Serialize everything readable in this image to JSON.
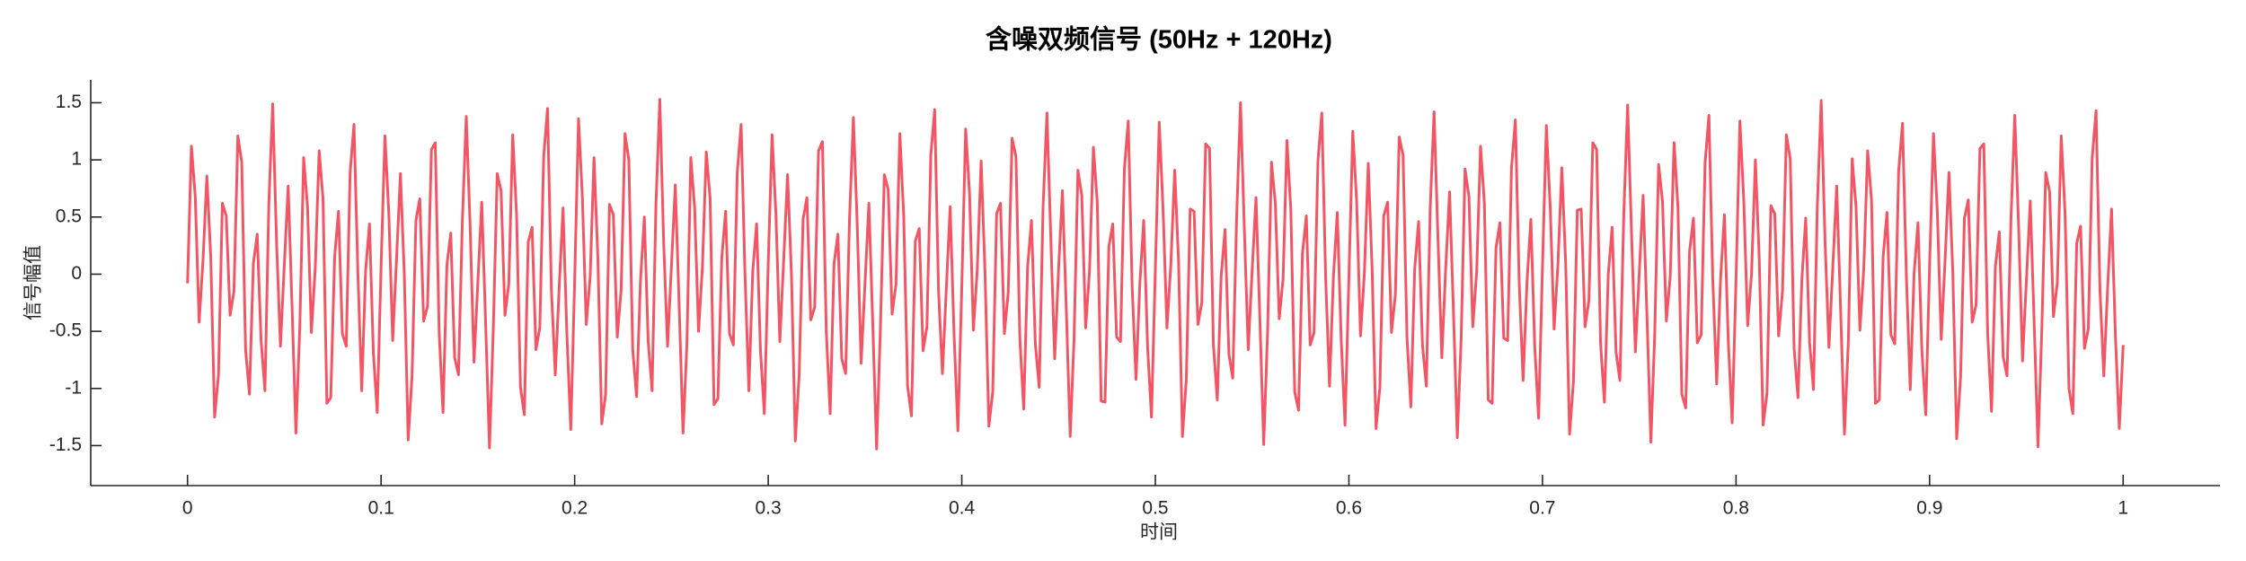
{
  "chart_data": {
    "type": "line",
    "title": "含噪双频信号 (50Hz + 120Hz)",
    "xlabel": "时间",
    "ylabel": "信号幅值",
    "xlim": [
      -0.05,
      1.05
    ],
    "ylim": [
      -1.85,
      1.7
    ],
    "xticks": [
      0,
      0.1,
      0.2,
      0.3,
      0.4,
      0.5,
      0.6,
      0.7,
      0.8,
      0.9,
      1
    ],
    "yticks": [
      -1.5,
      -1,
      -0.5,
      0,
      0.5,
      1,
      1.5
    ],
    "grid": false,
    "x": [
      0,
      0.002,
      0.004,
      0.006,
      0.008,
      0.01,
      0.012,
      0.014,
      0.016,
      0.018,
      0.02,
      0.022,
      0.024,
      0.026,
      0.028,
      0.03,
      0.032,
      0.034,
      0.036,
      0.038,
      0.04,
      0.042,
      0.044,
      0.046,
      0.048,
      0.05,
      0.052,
      0.054,
      0.056,
      0.058,
      0.06,
      0.062,
      0.064,
      0.066,
      0.068,
      0.07,
      0.072,
      0.074,
      0.076,
      0.078,
      0.08,
      0.082,
      0.084,
      0.086,
      0.088,
      0.09,
      0.092,
      0.094,
      0.096,
      0.098,
      0.1,
      0.102,
      0.104,
      0.106,
      0.108,
      0.11,
      0.112,
      0.114,
      0.116,
      0.118,
      0.12,
      0.122,
      0.124,
      0.126,
      0.128,
      0.13,
      0.132,
      0.134,
      0.136,
      0.138,
      0.14,
      0.142,
      0.144,
      0.146,
      0.148,
      0.15,
      0.152,
      0.154,
      0.156,
      0.158,
      0.16,
      0.162,
      0.164,
      0.166,
      0.168,
      0.17,
      0.172,
      0.174,
      0.176,
      0.178,
      0.18,
      0.182,
      0.184,
      0.186,
      0.188,
      0.19,
      0.192,
      0.194,
      0.196,
      0.198,
      0.2,
      0.202,
      0.204,
      0.206,
      0.208,
      0.21,
      0.212,
      0.214,
      0.216,
      0.218,
      0.22,
      0.222,
      0.224,
      0.226,
      0.228,
      0.23,
      0.232,
      0.234,
      0.236,
      0.238,
      0.24,
      0.242,
      0.244,
      0.246,
      0.248,
      0.25,
      0.252,
      0.254,
      0.256,
      0.258,
      0.26,
      0.262,
      0.264,
      0.266,
      0.268,
      0.27,
      0.272,
      0.274,
      0.276,
      0.278,
      0.28,
      0.282,
      0.284,
      0.286,
      0.288,
      0.29,
      0.292,
      0.294,
      0.296,
      0.298,
      0.3,
      0.302,
      0.304,
      0.306,
      0.308,
      0.31,
      0.312,
      0.314,
      0.316,
      0.318,
      0.32,
      0.322,
      0.324,
      0.326,
      0.328,
      0.33,
      0.332,
      0.334,
      0.336,
      0.338,
      0.34,
      0.342,
      0.344,
      0.346,
      0.348,
      0.35,
      0.352,
      0.354,
      0.356,
      0.358,
      0.36,
      0.362,
      0.364,
      0.366,
      0.368,
      0.37,
      0.372,
      0.374,
      0.376,
      0.378,
      0.38,
      0.382,
      0.384,
      0.386,
      0.388,
      0.39,
      0.392,
      0.394,
      0.396,
      0.398,
      0.4,
      0.402,
      0.404,
      0.406,
      0.408,
      0.41,
      0.412,
      0.414,
      0.416,
      0.418,
      0.42,
      0.422,
      0.424,
      0.426,
      0.428,
      0.43,
      0.432,
      0.434,
      0.436,
      0.438,
      0.44,
      0.442,
      0.444,
      0.446,
      0.448,
      0.45,
      0.452,
      0.454,
      0.456,
      0.458,
      0.46,
      0.462,
      0.464,
      0.466,
      0.468,
      0.47,
      0.472,
      0.474,
      0.476,
      0.478,
      0.48,
      0.482,
      0.484,
      0.486,
      0.488,
      0.49,
      0.492,
      0.494,
      0.496,
      0.498,
      0.5,
      0.502,
      0.504,
      0.506,
      0.508,
      0.51,
      0.512,
      0.514,
      0.516,
      0.518,
      0.52,
      0.522,
      0.524,
      0.526,
      0.528,
      0.53,
      0.532,
      0.534,
      0.536,
      0.538,
      0.54,
      0.542,
      0.544,
      0.546,
      0.548,
      0.55,
      0.552,
      0.554,
      0.556,
      0.558,
      0.56,
      0.562,
      0.564,
      0.566,
      0.568,
      0.57,
      0.572,
      0.574,
      0.576,
      0.578,
      0.58,
      0.582,
      0.584,
      0.586,
      0.588,
      0.59,
      0.592,
      0.594,
      0.596,
      0.598,
      0.6,
      0.602,
      0.604,
      0.606,
      0.608,
      0.61,
      0.612,
      0.614,
      0.616,
      0.618,
      0.62,
      0.622,
      0.624,
      0.626,
      0.628,
      0.63,
      0.632,
      0.634,
      0.636,
      0.638,
      0.64,
      0.642,
      0.644,
      0.646,
      0.648,
      0.65,
      0.652,
      0.654,
      0.656,
      0.658,
      0.66,
      0.662,
      0.664,
      0.666,
      0.668,
      0.67,
      0.672,
      0.674,
      0.676,
      0.678,
      0.68,
      0.682,
      0.684,
      0.686,
      0.688,
      0.69,
      0.692,
      0.694,
      0.696,
      0.698,
      0.7,
      0.702,
      0.704,
      0.706,
      0.708,
      0.71,
      0.712,
      0.714,
      0.716,
      0.718,
      0.72,
      0.722,
      0.724,
      0.726,
      0.728,
      0.73,
      0.732,
      0.734,
      0.736,
      0.738,
      0.74,
      0.742,
      0.744,
      0.746,
      0.748,
      0.75,
      0.752,
      0.754,
      0.756,
      0.758,
      0.76,
      0.762,
      0.764,
      0.766,
      0.768,
      0.77,
      0.772,
      0.774,
      0.776,
      0.778,
      0.78,
      0.782,
      0.784,
      0.786,
      0.788,
      0.79,
      0.792,
      0.794,
      0.796,
      0.798,
      0.8,
      0.802,
      0.804,
      0.806,
      0.808,
      0.81,
      0.812,
      0.814,
      0.816,
      0.818,
      0.82,
      0.822,
      0.824,
      0.826,
      0.828,
      0.83,
      0.832,
      0.834,
      0.836,
      0.838,
      0.84,
      0.842,
      0.844,
      0.846,
      0.848,
      0.85,
      0.852,
      0.854,
      0.856,
      0.858,
      0.86,
      0.862,
      0.864,
      0.866,
      0.868,
      0.87,
      0.872,
      0.874,
      0.876,
      0.878,
      0.88,
      0.882,
      0.884,
      0.886,
      0.888,
      0.89,
      0.892,
      0.894,
      0.896,
      0.898,
      0.9,
      0.902,
      0.904,
      0.906,
      0.908,
      0.91,
      0.912,
      0.914,
      0.916,
      0.918,
      0.92,
      0.922,
      0.924,
      0.926,
      0.928,
      0.93,
      0.932,
      0.934,
      0.936,
      0.938,
      0.94,
      0.942,
      0.944,
      0.946,
      0.948,
      0.95,
      0.952,
      0.954,
      0.956,
      0.958,
      0.96,
      0.962,
      0.964,
      0.966,
      0.968,
      0.97,
      0.972,
      0.974,
      0.976,
      0.978,
      0.98,
      0.982,
      0.984,
      0.986,
      0.988,
      0.99,
      0.992,
      0.994,
      0.996,
      0.998,
      1
    ],
    "series": [
      {
        "color": "#f25563",
        "values": [
          -0.08,
          1.12,
          0.68,
          -0.42,
          0.12,
          0.86,
          0.15,
          -1.25,
          -0.88,
          0.62,
          0.51,
          -0.36,
          -0.15,
          1.21,
          0.98,
          -0.66,
          -1.05,
          0.09,
          0.35,
          -0.58,
          -1.02,
          0.61,
          1.49,
          0.28,
          -0.63,
          0.08,
          0.77,
          -0.28,
          -1.39,
          -0.47,
          1.02,
          0.59,
          -0.51,
          0.06,
          1.08,
          0.66,
          -1.13,
          -1.08,
          0.15,
          0.55,
          -0.52,
          -0.63,
          0.89,
          1.31,
          0.02,
          -1.02,
          0.03,
          0.44,
          -0.68,
          -1.21,
          0.07,
          1.21,
          0.53,
          -0.58,
          0.14,
          0.88,
          -0.01,
          -1.45,
          -0.89,
          0.47,
          0.66,
          -0.41,
          -0.28,
          1.09,
          1.15,
          -0.51,
          -1.21,
          0.08,
          0.36,
          -0.73,
          -0.88,
          0.47,
          1.38,
          0.42,
          -0.77,
          -0.07,
          0.63,
          -0.42,
          -1.52,
          -0.46,
          0.88,
          0.73,
          -0.36,
          -0.08,
          1.22,
          0.52,
          -0.99,
          -1.23,
          0.28,
          0.41,
          -0.66,
          -0.47,
          1.03,
          1.45,
          -0.14,
          -0.88,
          -0.12,
          0.58,
          -0.53,
          -1.36,
          -0.06,
          1.36,
          0.67,
          -0.44,
          -0.03,
          1.02,
          0.14,
          -1.31,
          -1.05,
          0.61,
          0.52,
          -0.55,
          -0.14,
          1.23,
          1.0,
          -0.66,
          -1.07,
          -0.06,
          0.5,
          -0.59,
          -1.02,
          0.61,
          1.53,
          0.27,
          -0.63,
          0.07,
          0.78,
          -0.28,
          -1.39,
          -0.61,
          1.02,
          0.58,
          -0.5,
          0.06,
          1.07,
          0.66,
          -1.14,
          -1.09,
          0.14,
          0.55,
          -0.52,
          -0.62,
          0.89,
          1.31,
          0,
          -1.02,
          0.02,
          0.44,
          -0.67,
          -1.22,
          0.09,
          1.22,
          0.52,
          -0.59,
          0.13,
          0.87,
          0,
          -1.46,
          -0.88,
          0.48,
          0.67,
          -0.4,
          -0.29,
          1.08,
          1.16,
          -0.5,
          -1.22,
          0.09,
          0.35,
          -0.74,
          -0.87,
          0.48,
          1.37,
          0.43,
          -0.78,
          -0.08,
          0.62,
          -0.43,
          -1.53,
          -0.45,
          0.87,
          0.74,
          -0.35,
          -0.09,
          1.23,
          0.51,
          -0.98,
          -1.24,
          0.29,
          0.4,
          -0.67,
          -0.46,
          1.04,
          1.44,
          -0.15,
          -0.87,
          -0.13,
          0.59,
          -0.52,
          -1.37,
          -0.11,
          1.27,
          0.71,
          -0.49,
          0.04,
          0.99,
          0.02,
          -1.33,
          -1.03,
          0.53,
          0.62,
          -0.52,
          -0.16,
          1.19,
          1.03,
          -0.56,
          -1.18,
          0.06,
          0.47,
          -0.61,
          -0.99,
          0.59,
          1.41,
          0.31,
          -0.74,
          0.04,
          0.73,
          -0.31,
          -1.42,
          -0.57,
          0.91,
          0.69,
          -0.47,
          0.03,
          1.11,
          0.63,
          -1.11,
          -1.12,
          0.24,
          0.44,
          -0.55,
          -0.59,
          0.92,
          1.34,
          -0.1,
          -0.92,
          -0.08,
          0.47,
          -0.64,
          -1.25,
          0.04,
          1.33,
          0.56,
          -0.47,
          0.08,
          0.91,
          0.11,
          -1.42,
          -0.92,
          0.57,
          0.55,
          -0.44,
          -0.25,
          1.14,
          1.1,
          -0.62,
          -1.1,
          -0.02,
          0.39,
          -0.7,
          -0.91,
          0.5,
          1.5,
          0.38,
          -0.66,
          0.03,
          0.67,
          -0.39,
          -1.49,
          -0.5,
          0.98,
          0.62,
          -0.39,
          -0.04,
          1.17,
          0.56,
          -1.03,
          -1.19,
          0.18,
          0.51,
          -0.62,
          -0.51,
          0.99,
          1.41,
          -0.04,
          -0.98,
          -0.02,
          0.54,
          -0.57,
          -1.32,
          -0.03,
          1.25,
          0.64,
          -0.54,
          0.01,
          0.97,
          0.04,
          -1.35,
          -0.99,
          0.51,
          0.63,
          -0.51,
          -0.18,
          1.2,
          1.04,
          -0.55,
          -1.16,
          0.05,
          0.46,
          -0.62,
          -0.98,
          0.58,
          1.42,
          0.32,
          -0.73,
          0.05,
          0.72,
          -0.32,
          -1.43,
          -0.56,
          0.92,
          0.68,
          -0.46,
          0.02,
          1.12,
          0.62,
          -1.1,
          -1.13,
          0.23,
          0.45,
          -0.56,
          -0.58,
          0.93,
          1.35,
          -0.09,
          -0.93,
          -0.07,
          0.48,
          -0.63,
          -1.26,
          0.06,
          1.3,
          0.59,
          -0.48,
          0.09,
          0.93,
          0.09,
          -1.4,
          -0.94,
          0.56,
          0.57,
          -0.46,
          -0.23,
          1.15,
          1.09,
          -0.6,
          -1.12,
          0,
          0.41,
          -0.68,
          -0.93,
          0.52,
          1.48,
          0.36,
          -0.68,
          0.01,
          0.69,
          -0.37,
          -1.47,
          -0.52,
          0.96,
          0.64,
          -0.41,
          -0.02,
          1.15,
          0.58,
          -1.05,
          -1.17,
          0.2,
          0.49,
          -0.6,
          -0.53,
          0.97,
          1.39,
          -0.06,
          -0.96,
          -0.04,
          0.52,
          -0.59,
          -1.3,
          -0.05,
          1.34,
          0.65,
          -0.45,
          0,
          1.0,
          0.13,
          -1.32,
          -1.04,
          0.6,
          0.53,
          -0.54,
          -0.15,
          1.22,
          1.01,
          -0.65,
          -1.08,
          -0.05,
          0.49,
          -0.6,
          -1.01,
          0.6,
          1.52,
          0.28,
          -0.64,
          0.06,
          0.77,
          -0.29,
          -1.4,
          -0.6,
          1.01,
          0.59,
          -0.49,
          0.05,
          1.08,
          0.65,
          -1.13,
          -1.1,
          0.15,
          0.54,
          -0.53,
          -0.61,
          0.9,
          1.32,
          -0.01,
          -1.01,
          0.01,
          0.45,
          -0.66,
          -1.23,
          0.08,
          1.23,
          0.54,
          -0.57,
          0.12,
          0.89,
          0.01,
          -1.44,
          -0.9,
          0.49,
          0.65,
          -0.42,
          -0.27,
          1.1,
          1.14,
          -0.52,
          -1.2,
          0.07,
          0.37,
          -0.72,
          -0.89,
          0.46,
          1.39,
          0.41,
          -0.76,
          -0.06,
          0.64,
          -0.41,
          -1.51,
          -0.47,
          0.89,
          0.72,
          -0.37,
          -0.07,
          1.21,
          0.53,
          -1.0,
          -1.22,
          0.27,
          0.42,
          -0.65,
          -0.48,
          1.02,
          1.43,
          -0.13,
          -0.89,
          -0.11,
          0.57,
          -0.54,
          -1.35,
          -0.62
        ]
      }
    ]
  }
}
